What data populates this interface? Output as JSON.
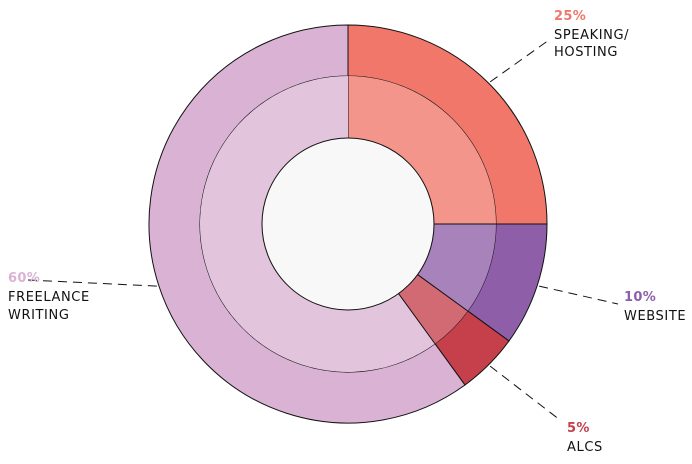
{
  "chart_data": {
    "type": "pie",
    "style": "donut",
    "title": "",
    "slices": [
      {
        "name": "SPEAKING/ HOSTING",
        "lines": [
          "SPEAKING/",
          "HOSTING"
        ],
        "value": 25,
        "pct_label": "25%",
        "color": "#f0776a"
      },
      {
        "name": "WEBSITE",
        "lines": [
          "WEBSITE"
        ],
        "value": 10,
        "pct_label": "10%",
        "color": "#8e5fa8"
      },
      {
        "name": "ALCS",
        "lines": [
          "ALCS"
        ],
        "value": 5,
        "pct_label": "5%",
        "color": "#c5404b"
      },
      {
        "name": "FREELANCE WRITING",
        "lines": [
          "FREELANCE",
          "WRITING"
        ],
        "value": 60,
        "pct_label": "60%",
        "color": "#dab3d4"
      }
    ]
  }
}
